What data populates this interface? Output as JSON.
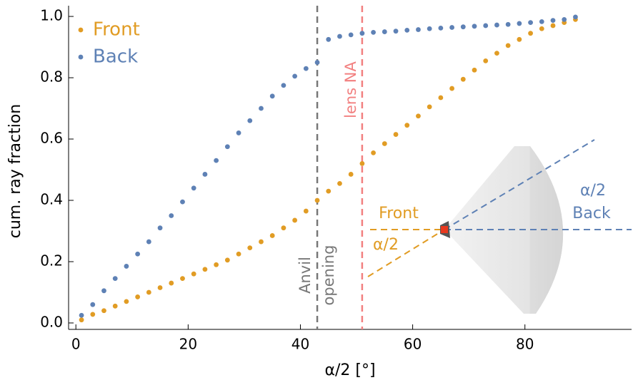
{
  "chart_data": {
    "type": "scatter",
    "xlabel": "α/2  [°]",
    "ylabel": "cum. ray fraction",
    "x": [
      1,
      3,
      5,
      7,
      9,
      11,
      13,
      15,
      17,
      19,
      21,
      23,
      25,
      27,
      29,
      31,
      33,
      35,
      37,
      39,
      41,
      43,
      45,
      47,
      49,
      51,
      53,
      55,
      57,
      59,
      61,
      63,
      65,
      67,
      69,
      71,
      73,
      75,
      77,
      79,
      81,
      83,
      85,
      87,
      89
    ],
    "series": [
      {
        "name": "Front",
        "color": "#e19c24",
        "values": [
          0.01,
          0.028,
          0.04,
          0.055,
          0.07,
          0.085,
          0.1,
          0.115,
          0.13,
          0.145,
          0.16,
          0.175,
          0.19,
          0.205,
          0.225,
          0.245,
          0.265,
          0.285,
          0.31,
          0.335,
          0.365,
          0.4,
          0.43,
          0.455,
          0.485,
          0.52,
          0.555,
          0.585,
          0.615,
          0.645,
          0.675,
          0.705,
          0.735,
          0.765,
          0.795,
          0.825,
          0.855,
          0.88,
          0.905,
          0.925,
          0.945,
          0.96,
          0.97,
          0.98,
          0.99
        ]
      },
      {
        "name": "Back",
        "color": "#5e81b5",
        "values": [
          0.025,
          0.06,
          0.105,
          0.145,
          0.185,
          0.225,
          0.265,
          0.31,
          0.35,
          0.395,
          0.44,
          0.485,
          0.53,
          0.575,
          0.62,
          0.66,
          0.7,
          0.74,
          0.775,
          0.805,
          0.83,
          0.85,
          0.925,
          0.935,
          0.94,
          0.945,
          0.948,
          0.95,
          0.952,
          0.955,
          0.957,
          0.96,
          0.962,
          0.964,
          0.966,
          0.968,
          0.97,
          0.972,
          0.974,
          0.977,
          0.98,
          0.983,
          0.987,
          0.99,
          0.998
        ]
      }
    ],
    "xlim": [
      -1.3,
      99
    ],
    "ylim": [
      -0.021,
      1.035
    ],
    "xticks": [
      0,
      20,
      40,
      60,
      80
    ],
    "yticks": [
      {
        "value": 0,
        "label": "0.0"
      },
      0.2,
      0.4,
      0.6,
      0.8,
      {
        "value": 1,
        "label": "1.0"
      }
    ],
    "grid": false,
    "legend": "upper left",
    "vlines": [
      {
        "x": 43,
        "color": "#777777"
      },
      {
        "x": 51,
        "color": "#f28080"
      }
    ],
    "annotations": {
      "anvil": "Anvil",
      "opening": "opening",
      "lens": "lens NA",
      "front": "Front",
      "front_angle": "α/2",
      "back_angle": "α/2",
      "back": "Back"
    }
  }
}
